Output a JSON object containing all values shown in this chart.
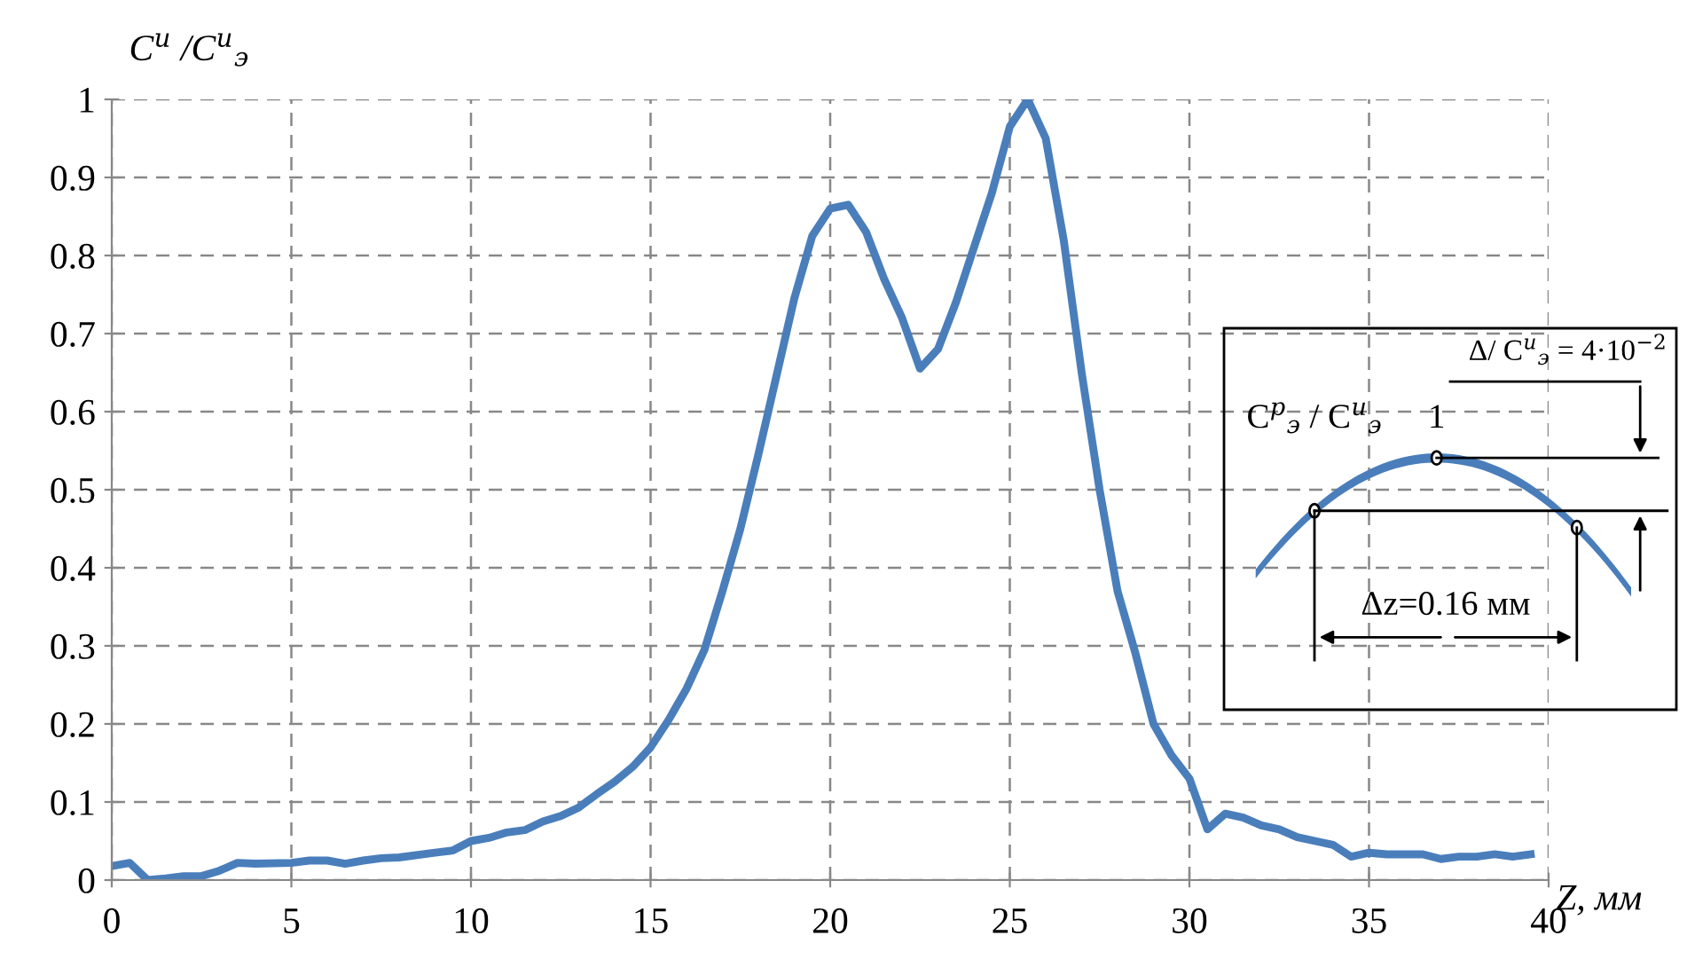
{
  "chart_data": [
    {
      "type": "line",
      "xlabel": "Z, мм",
      "ylabel": "C$^{и}$ /C$^{и}$$_{э}$",
      "x": [
        0,
        0.5,
        1,
        1.5,
        2,
        2.5,
        3,
        3.5,
        4,
        5,
        5.5,
        6,
        6.5,
        7,
        7.5,
        8,
        9,
        9.5,
        10,
        10.5,
        11,
        11.5,
        12,
        12.5,
        13,
        13.5,
        14,
        14.5,
        15,
        15.5,
        16,
        16.5,
        17,
        17.5,
        18,
        18.5,
        19,
        19.5,
        20,
        20.5,
        21,
        21.5,
        22,
        22.5,
        23,
        23.5,
        24,
        24.5,
        25,
        25.5,
        26,
        26.5,
        27,
        27.5,
        28,
        28.5,
        29,
        29.5,
        30,
        30.5,
        31,
        31.5,
        32,
        32.5,
        33,
        33.5,
        34,
        34.5,
        35,
        35.5,
        36,
        36.5,
        37,
        37.5,
        38,
        38.5,
        39,
        39.5
      ],
      "series": [
        {
          "color": "#4a7ebb",
          "values": [
            0.018,
            0.022,
            0.0,
            0.002,
            0.005,
            0.005,
            0.012,
            0.022,
            0.021,
            0.022,
            0.025,
            0.025,
            0.021,
            0.025,
            0.028,
            0.029,
            0.035,
            0.038,
            0.05,
            0.054,
            0.061,
            0.064,
            0.075,
            0.082,
            0.093,
            0.11,
            0.126,
            0.145,
            0.17,
            0.205,
            0.245,
            0.295,
            0.37,
            0.45,
            0.545,
            0.645,
            0.745,
            0.825,
            0.86,
            0.865,
            0.83,
            0.77,
            0.72,
            0.655,
            0.68,
            0.74,
            0.81,
            0.88,
            0.965,
            1.0,
            0.95,
            0.82,
            0.65,
            0.5,
            0.37,
            0.29,
            0.2,
            0.16,
            0.13,
            0.065,
            0.085,
            0.08,
            0.07,
            0.065,
            0.055,
            0.05,
            0.045,
            0.03,
            0.035,
            0.033,
            0.033,
            0.033,
            0.027,
            0.03,
            0.03,
            0.033,
            0.03,
            0.033
          ]
        }
      ],
      "xlim": [
        0,
        40
      ],
      "xticks": [
        0,
        5,
        10,
        15,
        20,
        25,
        30,
        35,
        40
      ],
      "ylim": [
        0,
        1
      ],
      "yticks": [
        0,
        0.1,
        0.2,
        0.3,
        0.4,
        0.5,
        0.6,
        0.7,
        0.8,
        0.9,
        1
      ],
      "grid": true,
      "line_style": "solid",
      "marker": "none"
    },
    {
      "type": "other",
      "annotations": [
        "Δ/ C$^{и}$$_{э}$ = 4·10$^{−2}$",
        "1",
        "C$^{р}$$_{э}$ / C$^{и}$$_{э}$",
        "Δz=0.16 мм"
      ]
    }
  ]
}
